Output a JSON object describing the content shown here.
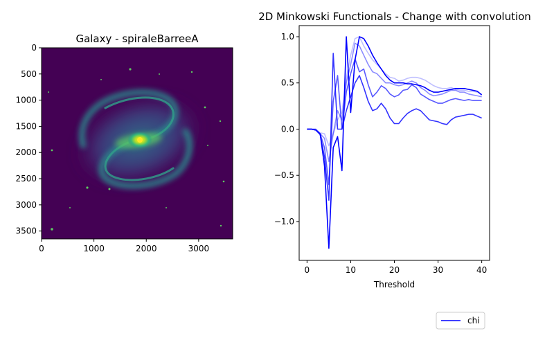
{
  "figure": {
    "background": "#ffffff"
  },
  "image_panel": {
    "title": "Galaxy - spiraleBarreeA",
    "x_ticks": [
      "0",
      "1000",
      "2000",
      "3000"
    ],
    "y_ticks": [
      "0",
      "500",
      "1000",
      "1500",
      "2000",
      "2500",
      "3000",
      "3500"
    ],
    "xlim": [
      0,
      3650
    ],
    "ylim": [
      0,
      3650
    ],
    "colormap": "viridis",
    "colors": {
      "background": "#440154",
      "arms": "#2a788e",
      "core": "#fde725"
    }
  },
  "chart_data": {
    "type": "line",
    "title": "2D Minkowski Functionals - Change with convolution",
    "xlabel": "Threshold",
    "ylabel": "",
    "xlim": [
      -1.8,
      41.8
    ],
    "ylim": [
      -1.42,
      1.12
    ],
    "x_ticks": [
      "0",
      "10",
      "20",
      "30",
      "40"
    ],
    "y_ticks": [
      "−1.0",
      "−0.5",
      "0.0",
      "0.5",
      "1.0"
    ],
    "grid": false,
    "legend": {
      "entries": [
        "chi"
      ],
      "placement": "below-right"
    },
    "color": "#0000ff",
    "x": [
      0,
      1,
      2,
      3,
      4,
      5,
      6,
      7,
      8,
      9,
      10,
      11,
      12,
      13,
      14,
      15,
      16,
      17,
      18,
      19,
      20,
      21,
      22,
      23,
      24,
      25,
      26,
      27,
      28,
      29,
      30,
      31,
      32,
      33,
      34,
      35,
      36,
      37,
      38,
      39,
      40
    ],
    "series": [
      {
        "name": "chi",
        "opacity": 0.25,
        "values": [
          0,
          0,
          0,
          -0.04,
          -0.05,
          -0.18,
          -0.05,
          0.1,
          0.18,
          0.55,
          0.8,
          0.98,
          1.0,
          0.9,
          0.82,
          0.75,
          0.7,
          0.65,
          0.6,
          0.56,
          0.55,
          0.52,
          0.53,
          0.55,
          0.56,
          0.56,
          0.55,
          0.53,
          0.5,
          0.47,
          0.45,
          0.44,
          0.44,
          0.45,
          0.43,
          0.42,
          0.42,
          0.41,
          0.41,
          0.4,
          0.38
        ]
      },
      {
        "name": "chi",
        "opacity": 0.45,
        "values": [
          0,
          0,
          0,
          -0.05,
          -0.1,
          -0.35,
          -0.05,
          0.2,
          0.1,
          0.5,
          0.7,
          0.93,
          0.9,
          0.8,
          0.7,
          0.62,
          0.6,
          0.55,
          0.5,
          0.5,
          0.48,
          0.47,
          0.48,
          0.5,
          0.52,
          0.5,
          0.45,
          0.42,
          0.38,
          0.36,
          0.37,
          0.38,
          0.4,
          0.42,
          0.42,
          0.4,
          0.4,
          0.38,
          0.37,
          0.36,
          0.35
        ]
      },
      {
        "name": "chi",
        "opacity": 0.65,
        "values": [
          0,
          0,
          -0.01,
          -0.05,
          -0.2,
          -0.6,
          0.3,
          0.58,
          0.0,
          0.4,
          0.6,
          0.76,
          0.62,
          0.65,
          0.48,
          0.35,
          0.4,
          0.47,
          0.44,
          0.38,
          0.35,
          0.37,
          0.42,
          0.43,
          0.48,
          0.45,
          0.38,
          0.35,
          0.32,
          0.3,
          0.28,
          0.28,
          0.3,
          0.32,
          0.33,
          0.32,
          0.31,
          0.32,
          0.31,
          0.31,
          0.31
        ]
      },
      {
        "name": "chi",
        "opacity": 0.8,
        "values": [
          0,
          0,
          -0.01,
          -0.06,
          -0.3,
          -0.77,
          0.82,
          0.0,
          0.0,
          0.2,
          0.35,
          0.5,
          0.58,
          0.45,
          0.3,
          0.2,
          0.22,
          0.28,
          0.22,
          0.12,
          0.06,
          0.06,
          0.12,
          0.17,
          0.2,
          0.22,
          0.2,
          0.15,
          0.1,
          0.09,
          0.08,
          0.06,
          0.05,
          0.1,
          0.13,
          0.14,
          0.15,
          0.16,
          0.16,
          0.14,
          0.12
        ]
      },
      {
        "name": "chi",
        "opacity": 1.0,
        "values": [
          0,
          0,
          -0.01,
          -0.05,
          -0.4,
          -1.29,
          -0.2,
          -0.08,
          -0.45,
          1.0,
          0.18,
          0.75,
          1.0,
          0.98,
          0.9,
          0.8,
          0.72,
          0.65,
          0.58,
          0.53,
          0.5,
          0.5,
          0.5,
          0.49,
          0.49,
          0.48,
          0.47,
          0.45,
          0.42,
          0.4,
          0.4,
          0.41,
          0.42,
          0.43,
          0.44,
          0.44,
          0.44,
          0.43,
          0.42,
          0.41,
          0.37
        ]
      }
    ]
  }
}
